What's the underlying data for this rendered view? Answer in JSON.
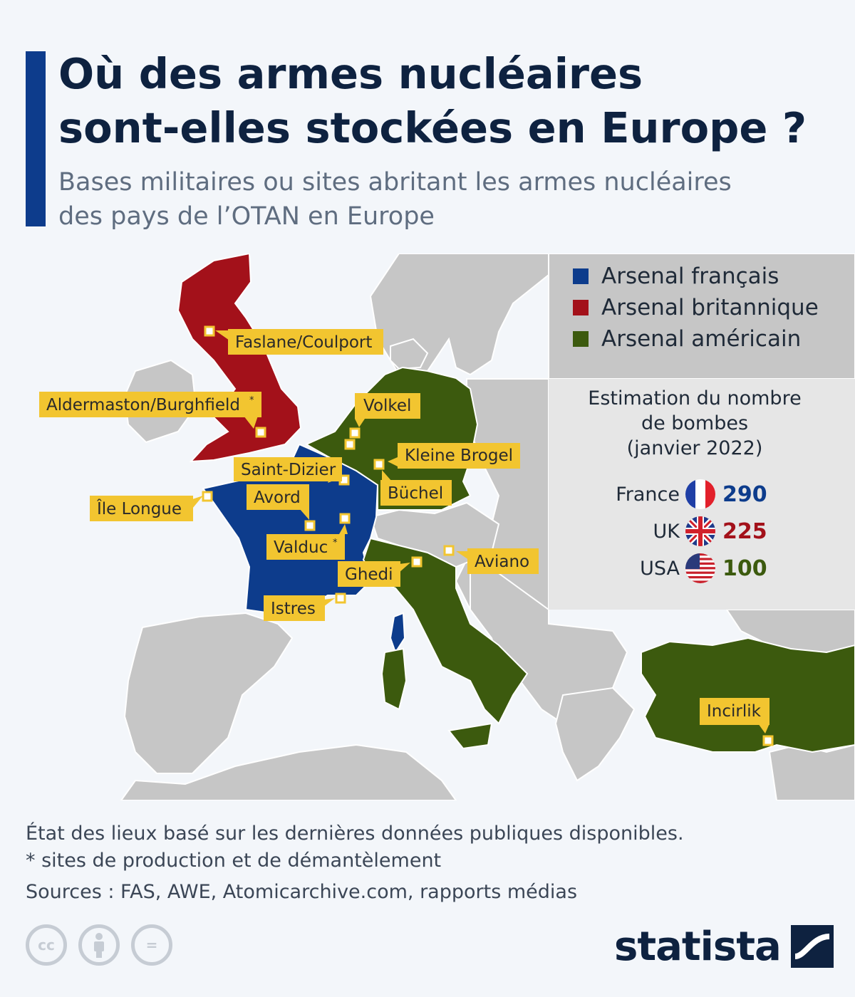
{
  "title": {
    "line1": "Où des armes nucléaires",
    "line2": "sont-elles stockées en Europe ?"
  },
  "subtitle": {
    "line1": "Bases militaires ou sites abritant les armes nucléaires",
    "line2": "des pays de l’OTAN en Europe"
  },
  "legend": [
    {
      "label": "Arsenal français",
      "color": "#0d3c8c"
    },
    {
      "label": "Arsenal britannique",
      "color": "#a3111a"
    },
    {
      "label": "Arsenal américain",
      "color": "#3c5a0e"
    }
  ],
  "estimate": {
    "title_line1": "Estimation du nombre",
    "title_line2": "de bombes",
    "title_line3": "(janvier 2022)",
    "rows": [
      {
        "country": "France",
        "value": "290",
        "color": "#0d3c8c",
        "flag": "flag-france"
      },
      {
        "country": "UK",
        "value": "225",
        "color": "#a3111a",
        "flag": "flag-uk"
      },
      {
        "country": "USA",
        "value": "100",
        "color": "#3c5a0e",
        "flag": "flag-usa"
      }
    ]
  },
  "map": {
    "colors": {
      "water": "#f3f6fa",
      "land": "#c6c6c6",
      "border": "#ffffff",
      "france": "#0d3c8c",
      "uk": "#a3111a",
      "usa": "#3c5a0e",
      "label_bg": "#f2c530"
    },
    "sites": [
      {
        "name": "Faslane/Coulport",
        "arsenal": "uk"
      },
      {
        "name": "Aldermaston/Burghfield",
        "arsenal": "uk",
        "asterisk": "*"
      },
      {
        "name": "Île Longue",
        "arsenal": "france"
      },
      {
        "name": "Saint-Dizier",
        "arsenal": "france"
      },
      {
        "name": "Avord",
        "arsenal": "france"
      },
      {
        "name": "Valduc",
        "arsenal": "france",
        "asterisk": "*"
      },
      {
        "name": "Istres",
        "arsenal": "france"
      },
      {
        "name": "Volkel",
        "arsenal": "usa"
      },
      {
        "name": "Kleine Brogel",
        "arsenal": "usa"
      },
      {
        "name": "Büchel",
        "arsenal": "usa"
      },
      {
        "name": "Ghedi",
        "arsenal": "usa"
      },
      {
        "name": "Aviano",
        "arsenal": "usa"
      },
      {
        "name": "Incirlik",
        "arsenal": "usa"
      }
    ]
  },
  "notes": {
    "line1": "État des lieux basé sur les dernières données publiques disponibles.",
    "line2": "* sites de production et de démantèlement",
    "sources": "Sources : FAS, AWE, Atomicarchive.com, rapports médias"
  },
  "footer": {
    "brand": "statista",
    "icons": [
      "cc-icon",
      "person-icon",
      "equal-icon"
    ],
    "cc_text": "cc",
    "equal_text": "="
  }
}
